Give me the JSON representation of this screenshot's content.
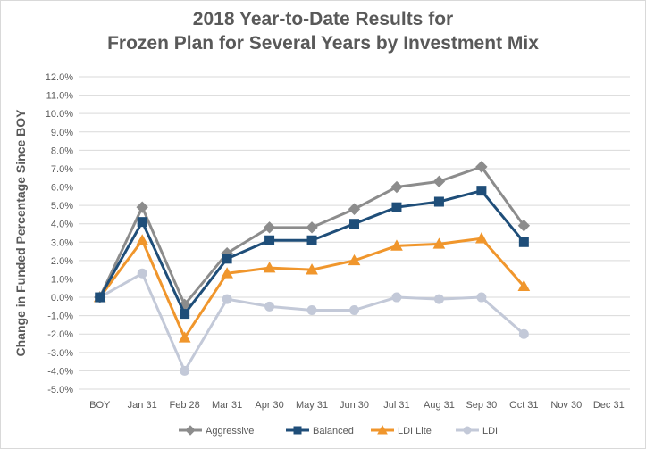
{
  "chart_data": {
    "type": "line",
    "title_line1": "2018 Year-to-Date Results for",
    "title_line2": "Frozen Plan for Several Years by Investment Mix",
    "ylabel": "Change in Funded Percentage Since BOY",
    "xlabel": "",
    "categories": [
      "BOY",
      "Jan 31",
      "Feb 28",
      "Mar 31",
      "Apr 30",
      "May 31",
      "Jun 30",
      "Jul 31",
      "Aug 31",
      "Sep 30",
      "Oct 31",
      "Nov 30",
      "Dec 31"
    ],
    "ylim": [
      -5.0,
      12.0
    ],
    "ytick_step": 1.0,
    "ytick_format": "%",
    "grid": true,
    "legend_position": "bottom",
    "series": [
      {
        "name": "Aggressive",
        "color": "#8c8c8c",
        "marker": "diamond",
        "values": [
          0.0,
          4.9,
          -0.4,
          2.4,
          3.8,
          3.8,
          4.8,
          6.0,
          6.3,
          7.1,
          3.9,
          null,
          null
        ]
      },
      {
        "name": "Balanced",
        "color": "#1f4e79",
        "marker": "square",
        "values": [
          0.0,
          4.1,
          -0.9,
          2.1,
          3.1,
          3.1,
          4.0,
          4.9,
          5.2,
          5.8,
          3.0,
          null,
          null
        ]
      },
      {
        "name": "LDI Lite",
        "color": "#f0962c",
        "marker": "triangle",
        "values": [
          0.0,
          3.1,
          -2.2,
          1.3,
          1.6,
          1.5,
          2.0,
          2.8,
          2.9,
          3.2,
          0.6,
          null,
          null
        ]
      },
      {
        "name": "LDI",
        "color": "#c3c9d8",
        "marker": "circle",
        "values": [
          0.0,
          1.3,
          -4.0,
          -0.1,
          -0.5,
          -0.7,
          -0.7,
          0.0,
          -0.1,
          0.0,
          -2.0,
          null,
          null
        ]
      }
    ]
  }
}
